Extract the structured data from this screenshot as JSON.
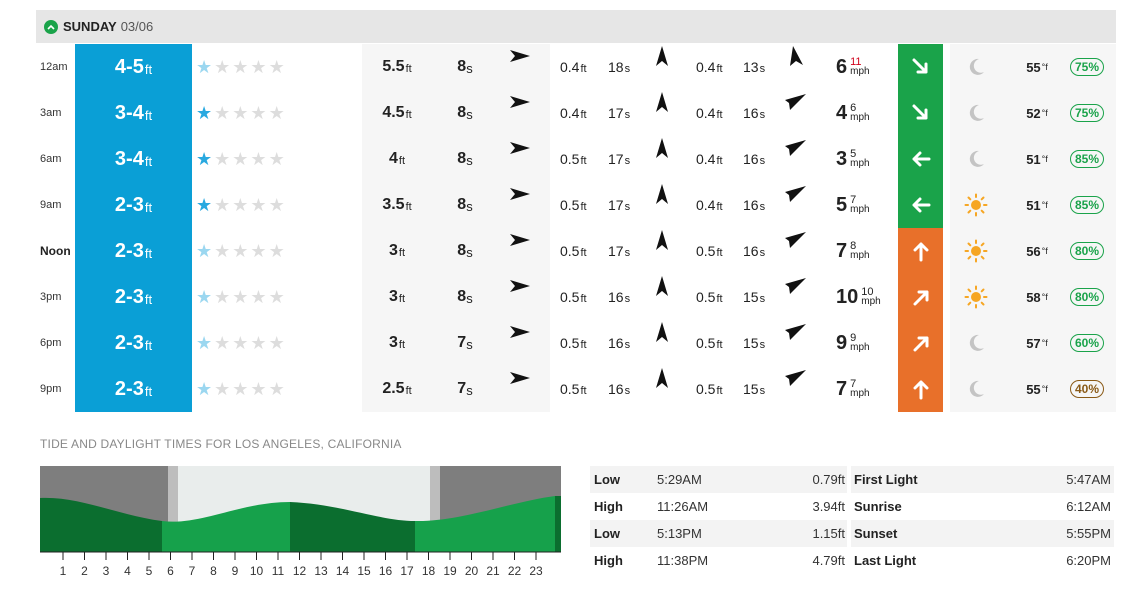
{
  "day": {
    "name": "SUNDAY",
    "date": "03/06",
    "toggle_icon": "chevron-up-icon"
  },
  "colors": {
    "surf_blue": "#0a9fd6",
    "green": "#1aa34a",
    "orange": "#e8702a"
  },
  "forecast": [
    {
      "time": "12am",
      "surf": "4-5",
      "surf_unit": "ft",
      "stars_filled": 1,
      "star_style": "dim",
      "swell_h": "5.5",
      "swell_p": "8",
      "s2_h": "0.4",
      "s2_p": "18",
      "s3_h": "0.4",
      "s3_p": "13",
      "wind": "6",
      "gust": "11",
      "gust_red": true,
      "wind_unit": "mph",
      "wind_bg": "green",
      "wind_icon": "arrow-down-right-icon",
      "weather": "moon-icon",
      "temp": "55",
      "temp_unit": "°f",
      "humidity": "75%"
    },
    {
      "time": "3am",
      "surf": "3-4",
      "surf_unit": "ft",
      "stars_filled": 1,
      "star_style": "on",
      "swell_h": "4.5",
      "swell_p": "8",
      "s2_h": "0.4",
      "s2_p": "17",
      "s3_h": "0.4",
      "s3_p": "16",
      "wind": "4",
      "gust": "6",
      "gust_red": false,
      "wind_unit": "mph",
      "wind_bg": "green",
      "wind_icon": "arrow-down-right-icon",
      "weather": "moon-icon",
      "temp": "52",
      "temp_unit": "°f",
      "humidity": "75%"
    },
    {
      "time": "6am",
      "surf": "3-4",
      "surf_unit": "ft",
      "stars_filled": 1,
      "star_style": "on",
      "swell_h": "4",
      "swell_p": "8",
      "s2_h": "0.5",
      "s2_p": "17",
      "s3_h": "0.4",
      "s3_p": "16",
      "wind": "3",
      "gust": "5",
      "gust_red": false,
      "wind_unit": "mph",
      "wind_bg": "green",
      "wind_icon": "arrow-left-icon",
      "weather": "moon-icon",
      "temp": "51",
      "temp_unit": "°f",
      "humidity": "85%"
    },
    {
      "time": "9am",
      "surf": "2-3",
      "surf_unit": "ft",
      "stars_filled": 1,
      "star_style": "on",
      "swell_h": "3.5",
      "swell_p": "8",
      "s2_h": "0.5",
      "s2_p": "17",
      "s3_h": "0.4",
      "s3_p": "16",
      "wind": "5",
      "gust": "7",
      "gust_red": false,
      "wind_unit": "mph",
      "wind_bg": "green",
      "wind_icon": "arrow-left-icon",
      "weather": "sun-icon",
      "temp": "51",
      "temp_unit": "°f",
      "humidity": "85%"
    },
    {
      "time": "Noon",
      "surf": "2-3",
      "surf_unit": "ft",
      "stars_filled": 1,
      "star_style": "dim",
      "swell_h": "3",
      "swell_p": "8",
      "s2_h": "0.5",
      "s2_p": "17",
      "s3_h": "0.5",
      "s3_p": "16",
      "wind": "7",
      "gust": "8",
      "gust_red": false,
      "wind_unit": "mph",
      "wind_bg": "orange",
      "wind_icon": "arrow-up-icon",
      "weather": "sun-icon",
      "temp": "56",
      "temp_unit": "°f",
      "humidity": "80%"
    },
    {
      "time": "3pm",
      "surf": "2-3",
      "surf_unit": "ft",
      "stars_filled": 1,
      "star_style": "dim",
      "swell_h": "3",
      "swell_p": "8",
      "s2_h": "0.5",
      "s2_p": "16",
      "s3_h": "0.5",
      "s3_p": "15",
      "wind": "10",
      "gust": "10",
      "gust_red": false,
      "wind_unit": "mph",
      "wind_bg": "orange",
      "wind_icon": "arrow-up-right-icon",
      "weather": "sun-icon",
      "temp": "58",
      "temp_unit": "°f",
      "humidity": "80%"
    },
    {
      "time": "6pm",
      "surf": "2-3",
      "surf_unit": "ft",
      "stars_filled": 1,
      "star_style": "dim",
      "swell_h": "3",
      "swell_p": "7",
      "s2_h": "0.5",
      "s2_p": "16",
      "s3_h": "0.5",
      "s3_p": "15",
      "wind": "9",
      "gust": "9",
      "gust_red": false,
      "wind_unit": "mph",
      "wind_bg": "orange",
      "wind_icon": "arrow-up-right-icon",
      "weather": "moon-icon",
      "temp": "57",
      "temp_unit": "°f",
      "humidity": "60%"
    },
    {
      "time": "9pm",
      "surf": "2-3",
      "surf_unit": "ft",
      "stars_filled": 1,
      "star_style": "dim",
      "swell_h": "2.5",
      "swell_p": "7",
      "s2_h": "0.5",
      "s2_p": "16",
      "s3_h": "0.5",
      "s3_p": "15",
      "wind": "7",
      "gust": "7",
      "gust_red": false,
      "wind_unit": "mph",
      "wind_bg": "orange",
      "wind_icon": "arrow-up-icon",
      "weather": "moon-icon",
      "temp": "55",
      "temp_unit": "°f",
      "humidity": "40%"
    }
  ],
  "units": {
    "ft": "ft",
    "s": "s"
  },
  "tide": {
    "title": "TIDE AND DAYLIGHT TIMES FOR LOS ANGELES, CALIFORNIA",
    "hours": [
      "1",
      "2",
      "3",
      "4",
      "5",
      "6",
      "7",
      "8",
      "9",
      "10",
      "11",
      "12",
      "13",
      "14",
      "15",
      "16",
      "17",
      "18",
      "19",
      "20",
      "21",
      "22",
      "23"
    ],
    "tides": [
      {
        "type": "Low",
        "time": "5:29AM",
        "height": "0.79ft"
      },
      {
        "type": "High",
        "time": "11:26AM",
        "height": "3.94ft"
      },
      {
        "type": "Low",
        "time": "5:13PM",
        "height": "1.15ft"
      },
      {
        "type": "High",
        "time": "11:38PM",
        "height": "4.79ft"
      }
    ],
    "daylight": [
      {
        "name": "First Light",
        "time": "5:47AM"
      },
      {
        "name": "Sunrise",
        "time": "6:12AM"
      },
      {
        "name": "Sunset",
        "time": "5:55PM"
      },
      {
        "name": "Last Light",
        "time": "6:20PM"
      }
    ]
  }
}
